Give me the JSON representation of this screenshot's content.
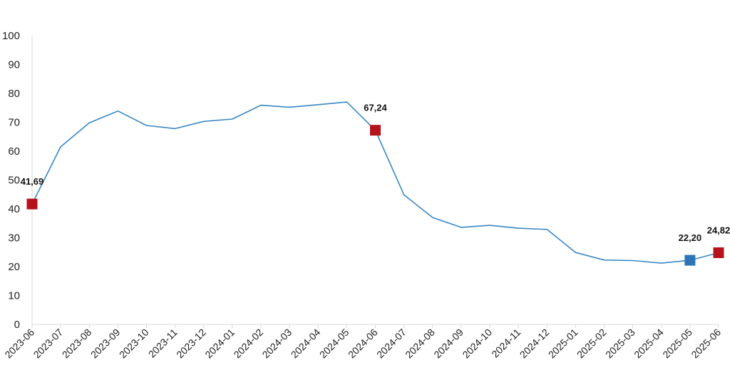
{
  "chart_data": {
    "type": "line",
    "title": "",
    "xlabel": "",
    "ylabel": "",
    "ylim": [
      0,
      100
    ],
    "yticks": [
      0,
      10,
      20,
      30,
      40,
      50,
      60,
      70,
      80,
      90,
      100
    ],
    "grid": false,
    "legend": "none",
    "categories": [
      "2023-06",
      "2023-07",
      "2023-08",
      "2023-09",
      "2023-10",
      "2023-11",
      "2023-12",
      "2024-01",
      "2024-02",
      "2024-03",
      "2024-04",
      "2024-05",
      "2024-06",
      "2024-07",
      "2024-08",
      "2024-09",
      "2024-10",
      "2024-11",
      "2024-12",
      "2025-01",
      "2025-02",
      "2025-03",
      "2025-04",
      "2025-05",
      "2025-06"
    ],
    "series": [
      {
        "values": [
          41.69,
          61.5,
          69.8,
          73.9,
          68.9,
          67.8,
          70.3,
          71.1,
          75.9,
          75.2,
          76.1,
          77.0,
          67.24,
          44.9,
          37.0,
          33.6,
          34.3,
          33.3,
          32.9,
          24.9,
          22.3,
          22.1,
          21.2,
          22.2,
          24.82
        ],
        "color": "#3a87c4"
      }
    ],
    "highlighted_points": [
      {
        "category": "2023-06",
        "value": 41.69,
        "label": "41,69",
        "color": "#b5121b"
      },
      {
        "category": "2024-06",
        "value": 67.24,
        "label": "67,24",
        "color": "#b5121b"
      },
      {
        "category": "2025-05",
        "value": 22.2,
        "label": "22,20",
        "color": "#2e75b6"
      },
      {
        "category": "2025-06",
        "value": 24.82,
        "label": "24,82",
        "color": "#b5121b"
      }
    ]
  }
}
